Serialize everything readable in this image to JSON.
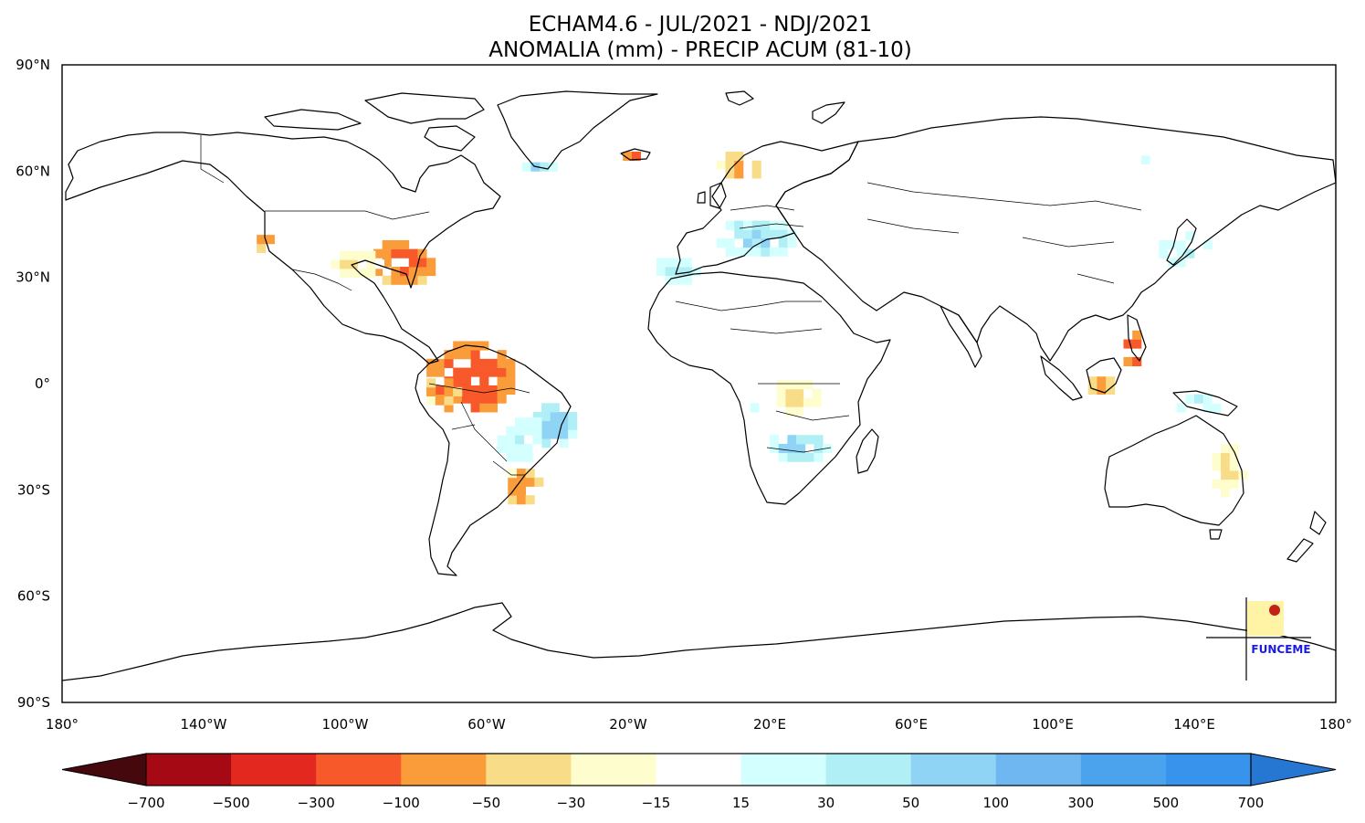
{
  "title": {
    "line1": "ECHAM4.6 - JUL/2021 - NDJ/2021",
    "line2": "ANOMALIA (mm) - PRECIP ACUM (81-10)"
  },
  "map": {
    "lat_range": [
      -90,
      90
    ],
    "lon_range": [
      -180,
      180
    ],
    "lat_ticks": [
      {
        "value": 90,
        "label": "90°N"
      },
      {
        "value": 60,
        "label": "60°N"
      },
      {
        "value": 30,
        "label": "30°N"
      },
      {
        "value": 0,
        "label": "0°"
      },
      {
        "value": -30,
        "label": "30°S"
      },
      {
        "value": -60,
        "label": "60°S"
      },
      {
        "value": -90,
        "label": "90°S"
      }
    ],
    "lon_ticks": [
      {
        "value": -180,
        "label": "180°"
      },
      {
        "value": -140,
        "label": "140°W"
      },
      {
        "value": -100,
        "label": "100°W"
      },
      {
        "value": -60,
        "label": "60°W"
      },
      {
        "value": -20,
        "label": "20°W"
      },
      {
        "value": 20,
        "label": "20°E"
      },
      {
        "value": 60,
        "label": "60°E"
      },
      {
        "value": 100,
        "label": "100°E"
      },
      {
        "value": 140,
        "label": "140°E"
      },
      {
        "value": 180,
        "label": "180°"
      }
    ],
    "anomaly_regions": [
      {
        "name": "amazon-north",
        "lon": [
          -77,
          -52
        ],
        "lat": [
          -8,
          11
        ],
        "level": -200
      },
      {
        "name": "amazon-west",
        "lon": [
          -77,
          -68
        ],
        "lat": [
          -6,
          2
        ],
        "level": -100
      },
      {
        "name": "se-usa",
        "lon": [
          -92,
          -75
        ],
        "lat": [
          28,
          40
        ],
        "level": -150
      },
      {
        "name": "central-usa",
        "lon": [
          -104,
          -90
        ],
        "lat": [
          30,
          38
        ],
        "level": -40
      },
      {
        "name": "usa-west-coast",
        "lon": [
          -125,
          -119
        ],
        "lat": [
          37,
          43
        ],
        "level": -80
      },
      {
        "name": "brazil-ne",
        "lon": [
          -47,
          -35
        ],
        "lat": [
          -18,
          -5
        ],
        "level": 80
      },
      {
        "name": "brazil-central",
        "lon": [
          -57,
          -44
        ],
        "lat": [
          -22,
          -8
        ],
        "level": 40
      },
      {
        "name": "brazil-south",
        "lon": [
          -54,
          -45
        ],
        "lat": [
          -34,
          -24
        ],
        "level": -110
      },
      {
        "name": "mediterranean",
        "lon": [
          5,
          28
        ],
        "lat": [
          36,
          46
        ],
        "level": 60
      },
      {
        "name": "iberia-nw-africa",
        "lon": [
          -12,
          0
        ],
        "lat": [
          28,
          36
        ],
        "level": 40
      },
      {
        "name": "southern-africa",
        "lon": [
          20,
          36
        ],
        "lat": [
          -22,
          -14
        ],
        "level": 70
      },
      {
        "name": "east-africa",
        "lon": [
          22,
          34
        ],
        "lat": [
          -9,
          2
        ],
        "level": -40
      },
      {
        "name": "angola",
        "lon": [
          12,
          20
        ],
        "lat": [
          -8,
          -2
        ],
        "level": 30
      },
      {
        "name": "borneo",
        "lon": [
          110,
          118
        ],
        "lat": [
          -3,
          2
        ],
        "level": -80
      },
      {
        "name": "philippines",
        "lon": [
          120,
          126
        ],
        "lat": [
          5,
          14
        ],
        "level": -200
      },
      {
        "name": "new-guinea",
        "lon": [
          135,
          148
        ],
        "lat": [
          -8,
          -3
        ],
        "level": 40
      },
      {
        "name": "east-australia",
        "lon": [
          145,
          154
        ],
        "lat": [
          -32,
          -16
        ],
        "level": -40
      },
      {
        "name": "scandinavia",
        "lon": [
          5,
          20
        ],
        "lat": [
          58,
          65
        ],
        "level": -80
      },
      {
        "name": "greenland-south",
        "lon": [
          -50,
          -40
        ],
        "lat": [
          60,
          63
        ],
        "level": 60
      },
      {
        "name": "iceland",
        "lon": [
          -24,
          -14
        ],
        "lat": [
          63,
          66
        ],
        "level": -120
      },
      {
        "name": "siberia-east",
        "lon": [
          120,
          130
        ],
        "lat": [
          62,
          66
        ],
        "level": 20
      },
      {
        "name": "japan",
        "lon": [
          130,
          145
        ],
        "lat": [
          33,
          42
        ],
        "level": 40
      }
    ]
  },
  "colorbar": {
    "labels": [
      "−700",
      "−500",
      "−300",
      "−100",
      "−50",
      "−30",
      "−15",
      "15",
      "30",
      "50",
      "100",
      "300",
      "500",
      "700"
    ],
    "colors": [
      "#a50913",
      "#e3291f",
      "#f8592a",
      "#fb9c3a",
      "#f8dc88",
      "#fefdcd",
      "#ffffff",
      "#d4ffff",
      "#afeff5",
      "#8fd3f5",
      "#6fb7f1",
      "#4ba3ee",
      "#3793ec"
    ],
    "extend_low_color": "#45080d",
    "extend_high_color": "#2677d2"
  },
  "logo": {
    "text": "FUNCEME",
    "square_color": "#fff3a6",
    "dot_color": "#c1231b"
  }
}
